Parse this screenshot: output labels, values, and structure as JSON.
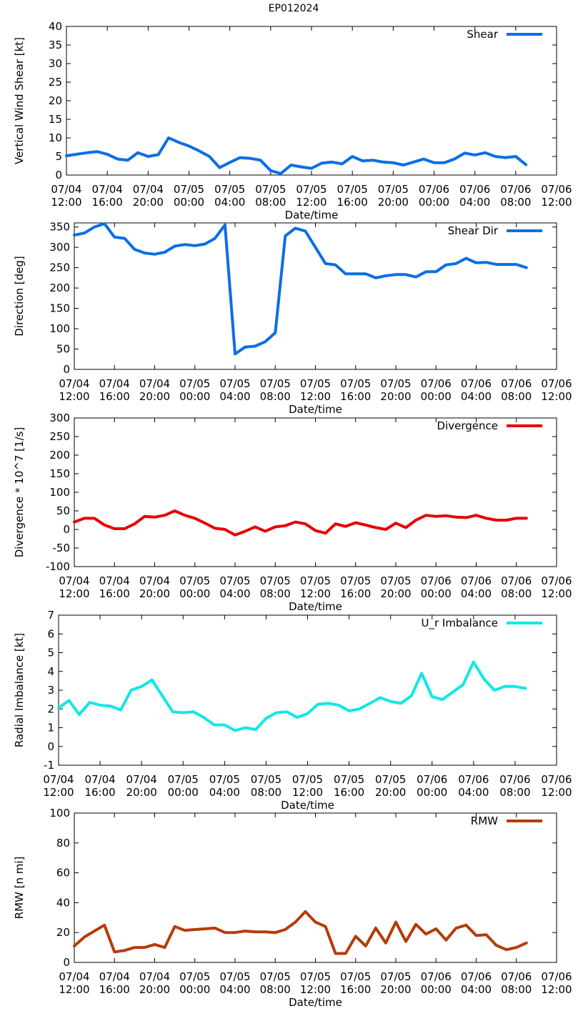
{
  "page_title": "EP012024",
  "chart_data": [
    {
      "type": "line",
      "ylabel": "Vertical Wind Shear [kt]",
      "xlabel": "Date/time",
      "ylim": [
        0,
        40
      ],
      "yticks": [
        "0",
        "5",
        "10",
        "15",
        "20",
        "25",
        "30",
        "35",
        "40"
      ],
      "ytick_values": [
        0,
        5,
        10,
        15,
        20,
        25,
        30,
        35,
        40
      ],
      "xlim": [
        0,
        48
      ],
      "xtick_values": [
        0,
        4,
        8,
        12,
        16,
        20,
        24,
        28,
        32,
        36,
        40,
        44,
        48
      ],
      "xticks": [
        [
          "07/04",
          "12:00"
        ],
        [
          "07/04",
          "16:00"
        ],
        [
          "07/04",
          "20:00"
        ],
        [
          "07/05",
          "00:00"
        ],
        [
          "07/05",
          "04:00"
        ],
        [
          "07/05",
          "08:00"
        ],
        [
          "07/05",
          "12:00"
        ],
        [
          "07/05",
          "16:00"
        ],
        [
          "07/05",
          "20:00"
        ],
        [
          "07/06",
          "00:00"
        ],
        [
          "07/06",
          "04:00"
        ],
        [
          "07/06",
          "08:00"
        ],
        [
          "07/06",
          "12:00"
        ]
      ],
      "series": [
        {
          "name": "Shear",
          "color": "#0a6ee6",
          "x": [
            0,
            1,
            2,
            3,
            4,
            5,
            6,
            7,
            8,
            9,
            10,
            11,
            12,
            13,
            14,
            15,
            16,
            17,
            18,
            19,
            20,
            21,
            22,
            23,
            24,
            25,
            26,
            27,
            28,
            29,
            30,
            31,
            32,
            33,
            34,
            35,
            36,
            37,
            38,
            39,
            40,
            41,
            42,
            43,
            44,
            45
          ],
          "values": [
            5.2,
            5.6,
            6.0,
            6.3,
            5.6,
            4.3,
            4.0,
            6.0,
            5.0,
            5.5,
            10.0,
            8.8,
            7.8,
            6.5,
            5.0,
            2.0,
            3.4,
            4.7,
            4.5,
            4.0,
            1.2,
            0.4,
            2.7,
            2.2,
            1.8,
            3.2,
            3.5,
            3.0,
            5.0,
            3.8,
            4.0,
            3.5,
            3.3,
            2.7,
            3.5,
            4.3,
            3.3,
            3.3,
            4.3,
            5.9,
            5.4,
            6.0,
            5.0,
            4.7,
            5.0,
            2.8
          ]
        }
      ]
    },
    {
      "type": "line",
      "ylabel": "Direction [deg]",
      "xlabel": "Date/time",
      "ylim": [
        0,
        360
      ],
      "yticks": [
        "0",
        "50",
        "100",
        "150",
        "200",
        "250",
        "300",
        "350"
      ],
      "ytick_values": [
        0,
        50,
        100,
        150,
        200,
        250,
        300,
        350
      ],
      "xlim": [
        0,
        48
      ],
      "xtick_values": [
        0,
        4,
        8,
        12,
        16,
        20,
        24,
        28,
        32,
        36,
        40,
        44,
        48
      ],
      "xticks": [
        [
          "07/04",
          "12:00"
        ],
        [
          "07/04",
          "16:00"
        ],
        [
          "07/04",
          "20:00"
        ],
        [
          "07/05",
          "00:00"
        ],
        [
          "07/05",
          "04:00"
        ],
        [
          "07/05",
          "08:00"
        ],
        [
          "07/05",
          "12:00"
        ],
        [
          "07/05",
          "16:00"
        ],
        [
          "07/05",
          "20:00"
        ],
        [
          "07/06",
          "00:00"
        ],
        [
          "07/06",
          "04:00"
        ],
        [
          "07/06",
          "08:00"
        ],
        [
          "07/06",
          "12:00"
        ]
      ],
      "series": [
        {
          "name": "Shear Dir",
          "color": "#0a6ee6",
          "x": [
            0,
            1,
            2,
            3,
            4,
            5,
            6,
            7,
            8,
            9,
            10,
            11,
            12,
            13,
            14,
            15,
            16,
            17,
            18,
            19,
            20,
            21,
            22,
            23,
            24,
            25,
            26,
            27,
            28,
            29,
            30,
            31,
            32,
            33,
            34,
            35,
            36,
            37,
            38,
            39,
            40,
            41,
            42,
            43,
            44,
            45
          ],
          "values": [
            330,
            335,
            350,
            358,
            325,
            322,
            295,
            286,
            283,
            288,
            303,
            307,
            304,
            308,
            322,
            355,
            38,
            55,
            57,
            68,
            90,
            328,
            347,
            340,
            300,
            260,
            257,
            235,
            235,
            235,
            225,
            230,
            233,
            233,
            227,
            240,
            240,
            257,
            260,
            273,
            262,
            263,
            258,
            258,
            258,
            250
          ]
        }
      ]
    },
    {
      "type": "line",
      "ylabel": "Divergence * 10^7 [1/s]",
      "xlabel": "Date/time",
      "ylim": [
        -100,
        300
      ],
      "yticks": [
        "-100",
        "-50",
        "0",
        "50",
        "100",
        "150",
        "200",
        "250",
        "300"
      ],
      "ytick_values": [
        -100,
        -50,
        0,
        50,
        100,
        150,
        200,
        250,
        300
      ],
      "xlim": [
        0,
        48
      ],
      "xtick_values": [
        0,
        4,
        8,
        12,
        16,
        20,
        24,
        28,
        32,
        36,
        40,
        44,
        48
      ],
      "xticks": [
        [
          "07/04",
          "12:00"
        ],
        [
          "07/04",
          "16:00"
        ],
        [
          "07/04",
          "20:00"
        ],
        [
          "07/05",
          "00:00"
        ],
        [
          "07/05",
          "04:00"
        ],
        [
          "07/05",
          "08:00"
        ],
        [
          "07/05",
          "12:00"
        ],
        [
          "07/05",
          "16:00"
        ],
        [
          "07/05",
          "20:00"
        ],
        [
          "07/06",
          "00:00"
        ],
        [
          "07/06",
          "04:00"
        ],
        [
          "07/06",
          "08:00"
        ],
        [
          "07/06",
          "12:00"
        ]
      ],
      "series": [
        {
          "name": "Divergence",
          "color": "#e60000",
          "x": [
            0,
            1,
            2,
            3,
            4,
            5,
            6,
            7,
            8,
            9,
            10,
            11,
            12,
            13,
            14,
            15,
            16,
            17,
            18,
            19,
            20,
            21,
            22,
            23,
            24,
            25,
            26,
            27,
            28,
            29,
            30,
            31,
            32,
            33,
            34,
            35,
            36,
            37,
            38,
            39,
            40,
            41,
            42,
            43,
            44,
            45
          ],
          "values": [
            20,
            30,
            30,
            12,
            2,
            2,
            15,
            35,
            33,
            38,
            50,
            38,
            30,
            17,
            3,
            0,
            -15,
            -5,
            7,
            -5,
            7,
            10,
            20,
            15,
            -3,
            -10,
            15,
            8,
            18,
            12,
            5,
            0,
            17,
            5,
            25,
            38,
            35,
            37,
            33,
            32,
            38,
            30,
            25,
            25,
            30,
            30
          ]
        }
      ]
    },
    {
      "type": "line",
      "ylabel": "Radial Imbalance [kt]",
      "xlabel": "Date/time",
      "ylim": [
        -1,
        7
      ],
      "yticks": [
        "-1",
        "0",
        "1",
        "2",
        "3",
        "4",
        "5",
        "6",
        "7"
      ],
      "ytick_values": [
        -1,
        0,
        1,
        2,
        3,
        4,
        5,
        6,
        7
      ],
      "xlim": [
        0,
        48
      ],
      "xtick_values": [
        0,
        4,
        8,
        12,
        16,
        20,
        24,
        28,
        32,
        36,
        40,
        44,
        48
      ],
      "xticks": [
        [
          "07/04",
          "12:00"
        ],
        [
          "07/04",
          "16:00"
        ],
        [
          "07/04",
          "20:00"
        ],
        [
          "07/05",
          "00:00"
        ],
        [
          "07/05",
          "04:00"
        ],
        [
          "07/05",
          "08:00"
        ],
        [
          "07/05",
          "12:00"
        ],
        [
          "07/05",
          "16:00"
        ],
        [
          "07/05",
          "20:00"
        ],
        [
          "07/06",
          "00:00"
        ],
        [
          "07/06",
          "04:00"
        ],
        [
          "07/06",
          "08:00"
        ],
        [
          "07/06",
          "12:00"
        ]
      ],
      "series": [
        {
          "name": "U_r Imbalance",
          "color": "#14e6e6",
          "x": [
            0,
            1,
            2,
            3,
            4,
            5,
            6,
            7,
            8,
            9,
            10,
            11,
            12,
            13,
            14,
            15,
            16,
            17,
            18,
            19,
            20,
            21,
            22,
            23,
            24,
            25,
            26,
            27,
            28,
            29,
            30,
            31,
            32,
            33,
            34,
            35,
            36,
            37,
            38,
            39,
            40,
            41,
            42,
            43,
            44,
            45
          ],
          "values": [
            2.05,
            2.45,
            1.7,
            2.35,
            2.2,
            2.15,
            1.95,
            3.0,
            3.2,
            3.55,
            2.7,
            1.85,
            1.8,
            1.85,
            1.55,
            1.15,
            1.15,
            0.85,
            1.0,
            0.9,
            1.5,
            1.8,
            1.85,
            1.55,
            1.75,
            2.25,
            2.3,
            2.2,
            1.9,
            2.0,
            2.3,
            2.6,
            2.4,
            2.3,
            2.7,
            3.9,
            2.65,
            2.5,
            2.9,
            3.3,
            4.5,
            3.6,
            3.0,
            3.2,
            3.2,
            3.1
          ]
        }
      ]
    },
    {
      "type": "line",
      "ylabel": "RMW [n mi]",
      "xlabel": "Date/time",
      "ylim": [
        0,
        100
      ],
      "yticks": [
        "0",
        "20",
        "40",
        "60",
        "80",
        "100"
      ],
      "ytick_values": [
        0,
        20,
        40,
        60,
        80,
        100
      ],
      "xlim": [
        0,
        48
      ],
      "xtick_values": [
        0,
        4,
        8,
        12,
        16,
        20,
        24,
        28,
        32,
        36,
        40,
        44,
        48
      ],
      "xticks": [
        [
          "07/04",
          "12:00"
        ],
        [
          "07/04",
          "16:00"
        ],
        [
          "07/04",
          "20:00"
        ],
        [
          "07/05",
          "00:00"
        ],
        [
          "07/05",
          "04:00"
        ],
        [
          "07/05",
          "08:00"
        ],
        [
          "07/05",
          "12:00"
        ],
        [
          "07/05",
          "16:00"
        ],
        [
          "07/05",
          "20:00"
        ],
        [
          "07/06",
          "00:00"
        ],
        [
          "07/06",
          "04:00"
        ],
        [
          "07/06",
          "08:00"
        ],
        [
          "07/06",
          "12:00"
        ]
      ],
      "series": [
        {
          "name": "RMW",
          "color": "#b43c0a",
          "x": [
            0,
            1,
            2,
            3,
            4,
            5,
            6,
            7,
            8,
            9,
            10,
            11,
            12,
            13,
            14,
            15,
            16,
            17,
            18,
            19,
            20,
            21,
            22,
            23,
            24,
            25,
            26,
            27,
            28,
            29,
            30,
            31,
            32,
            33,
            34,
            35,
            36,
            37,
            38,
            39,
            40,
            41,
            42,
            43,
            44,
            45
          ],
          "values": [
            11,
            17,
            21,
            25,
            7,
            8,
            10,
            10,
            12,
            10,
            24,
            21.5,
            22,
            22.5,
            23,
            20,
            20,
            21,
            20.5,
            20.5,
            20,
            22,
            27,
            34,
            27,
            24,
            6,
            6,
            17.5,
            11,
            23,
            13,
            27,
            14,
            25.5,
            19,
            22.5,
            15,
            23,
            25,
            18,
            18.5,
            11.5,
            8.5,
            10,
            13
          ]
        }
      ]
    }
  ]
}
